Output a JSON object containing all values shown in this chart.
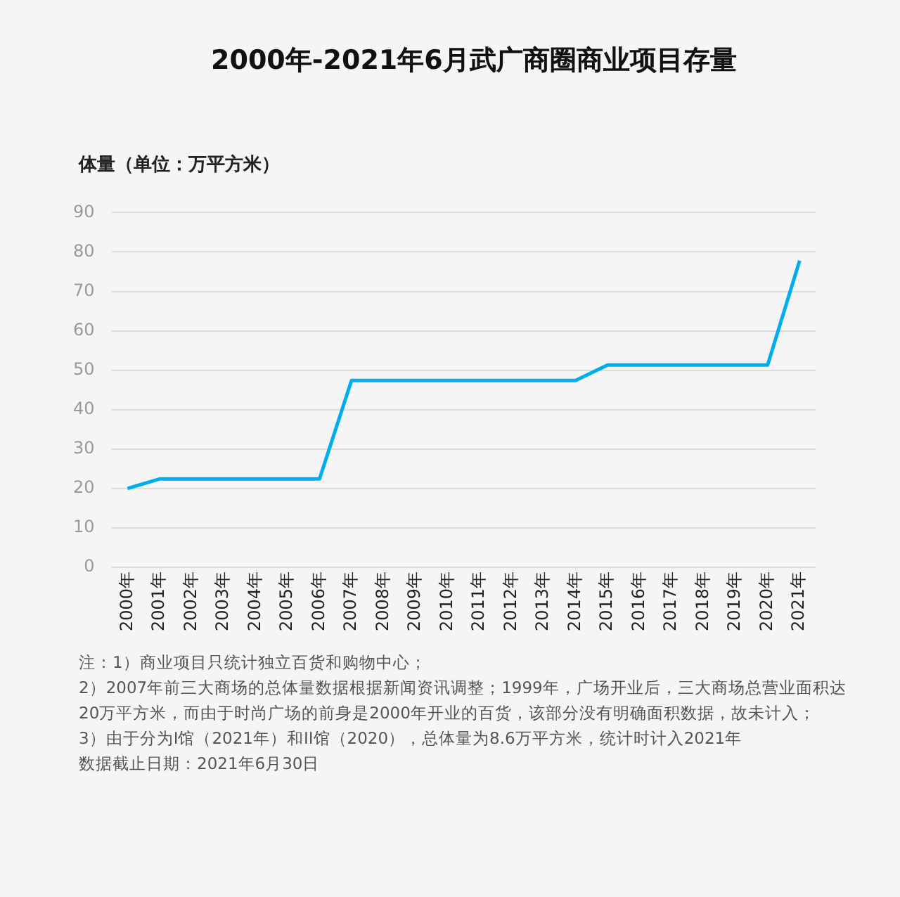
{
  "chart_data": {
    "type": "line",
    "title": "2000年-2021年6月武广商圈商业项目存量",
    "ylabel": "体量（单位：万平方米）",
    "categories": [
      "2000年",
      "2001年",
      "2002年",
      "2003年",
      "2004年",
      "2005年",
      "2006年",
      "2007年",
      "2008年",
      "2009年",
      "2010年",
      "2011年",
      "2012年",
      "2013年",
      "2014年",
      "2015年",
      "2016年",
      "2017年",
      "2018年",
      "2019年",
      "2020年",
      "2021年"
    ],
    "series": [
      {
        "color": "#00aeef",
        "values": [
          20,
          22.4,
          22.4,
          22.4,
          22.4,
          22.4,
          22.4,
          47.4,
          47.4,
          47.4,
          47.4,
          47.4,
          47.4,
          47.4,
          47.4,
          51.3,
          51.3,
          51.3,
          51.3,
          51.3,
          51.3,
          77.8
        ]
      }
    ],
    "ylim": [
      0,
      90
    ],
    "yticks": [
      0,
      10,
      20,
      30,
      40,
      50,
      60,
      70,
      80,
      90
    ],
    "grid": "y",
    "legend": false,
    "marker": "none",
    "line_style": "solid",
    "annotations": [
      "注：1）商业项目只统计独立百货和购物中心；",
      "2）2007年前三大商场的总体量数据根据新闻资讯调整；1999年，广场开业后，三大商场总营业面积达20万平方米，而由于时尚广场的前身是2000年开业的百货，该部分没有明确面积数据，故未计入；",
      "3）由于分为I馆（2021年）和II馆（2020），总体量为8.6万平方米，统计时计入2021年",
      "数据截止日期：2021年6月30日"
    ]
  }
}
